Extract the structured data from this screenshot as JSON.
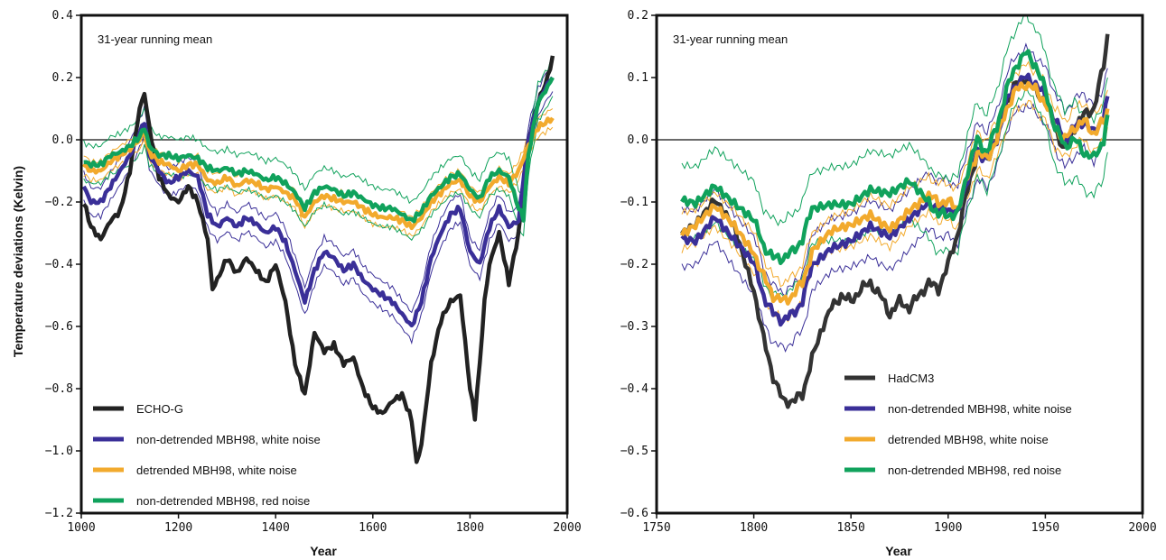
{
  "colors": {
    "echo": "#222222",
    "hadcm3": "#333333",
    "white_noise": "#3a2f98",
    "detrended": "#f2aa2d",
    "red_noise": "#10a25c"
  },
  "shared": {
    "ylabel": "Temperature deviations (Kelvin)",
    "xlabel": "Year",
    "note": "31-year running mean"
  },
  "chart_data": [
    {
      "type": "line",
      "xlabel": "Year",
      "ylabel": "Temperature deviations (Kelvin)",
      "annotation": "31-year running mean",
      "xlim": [
        1000,
        2000
      ],
      "ylim": [
        -1.2,
        0.4
      ],
      "xticks": [
        "1000",
        "1200",
        "1400",
        "1600",
        "1800",
        "2000"
      ],
      "yticks": [
        "0.4",
        "0.2",
        "0.0",
        "−0.2",
        "−0.4",
        "−0.6",
        "−0.8",
        "−1.0",
        "−1.2"
      ],
      "zero_line": true,
      "legend_position": "bottom-left",
      "series": [
        {
          "name": "ECHO-G",
          "color_key": "echo",
          "x": [
            1005,
            1020,
            1040,
            1060,
            1080,
            1100,
            1120,
            1130,
            1140,
            1160,
            1180,
            1200,
            1220,
            1240,
            1260,
            1270,
            1280,
            1300,
            1320,
            1340,
            1360,
            1380,
            1400,
            1420,
            1440,
            1460,
            1480,
            1500,
            1520,
            1540,
            1560,
            1580,
            1600,
            1620,
            1640,
            1660,
            1680,
            1690,
            1700,
            1720,
            1740,
            1760,
            1780,
            1800,
            1810,
            1820,
            1830,
            1840,
            1860,
            1880,
            1900,
            1920,
            1940,
            1960,
            1970
          ],
          "values": [
            -0.2,
            -0.28,
            -0.32,
            -0.26,
            -0.23,
            -0.1,
            0.1,
            0.15,
            0.04,
            -0.12,
            -0.18,
            -0.2,
            -0.15,
            -0.2,
            -0.32,
            -0.48,
            -0.45,
            -0.38,
            -0.43,
            -0.38,
            -0.42,
            -0.46,
            -0.4,
            -0.52,
            -0.72,
            -0.82,
            -0.62,
            -0.68,
            -0.66,
            -0.72,
            -0.7,
            -0.8,
            -0.86,
            -0.88,
            -0.84,
            -0.82,
            -0.9,
            -1.04,
            -0.98,
            -0.72,
            -0.58,
            -0.52,
            -0.5,
            -0.8,
            -0.89,
            -0.72,
            -0.52,
            -0.4,
            -0.3,
            -0.46,
            -0.3,
            0.0,
            0.12,
            0.2,
            0.27
          ]
        },
        {
          "name": "non-detrended MBH98, white noise",
          "color_key": "white_noise",
          "x": [
            1005,
            1020,
            1040,
            1060,
            1080,
            1100,
            1120,
            1130,
            1140,
            1160,
            1180,
            1200,
            1220,
            1240,
            1260,
            1280,
            1300,
            1320,
            1340,
            1360,
            1380,
            1400,
            1420,
            1440,
            1460,
            1480,
            1500,
            1520,
            1540,
            1560,
            1580,
            1600,
            1620,
            1640,
            1660,
            1680,
            1700,
            1720,
            1740,
            1760,
            1780,
            1800,
            1820,
            1840,
            1860,
            1880,
            1900,
            1920,
            1940,
            1960,
            1970
          ],
          "values": [
            -0.15,
            -0.2,
            -0.2,
            -0.15,
            -0.1,
            -0.05,
            0.02,
            0.06,
            -0.05,
            -0.1,
            -0.14,
            -0.12,
            -0.1,
            -0.12,
            -0.24,
            -0.28,
            -0.25,
            -0.28,
            -0.25,
            -0.27,
            -0.3,
            -0.28,
            -0.33,
            -0.42,
            -0.52,
            -0.42,
            -0.36,
            -0.38,
            -0.42,
            -0.4,
            -0.45,
            -0.48,
            -0.5,
            -0.52,
            -0.56,
            -0.6,
            -0.52,
            -0.38,
            -0.3,
            -0.24,
            -0.22,
            -0.36,
            -0.4,
            -0.28,
            -0.22,
            -0.28,
            -0.26,
            0.0,
            0.12,
            0.18,
            0.2
          ]
        },
        {
          "name": "detrended MBH98, white noise",
          "color_key": "detrended",
          "x": [
            1005,
            1020,
            1040,
            1060,
            1080,
            1100,
            1120,
            1130,
            1140,
            1160,
            1180,
            1200,
            1220,
            1240,
            1260,
            1280,
            1300,
            1320,
            1340,
            1360,
            1380,
            1400,
            1420,
            1440,
            1460,
            1480,
            1500,
            1520,
            1540,
            1560,
            1580,
            1600,
            1620,
            1640,
            1660,
            1680,
            1700,
            1720,
            1740,
            1760,
            1780,
            1800,
            1820,
            1840,
            1860,
            1880,
            1900,
            1920,
            1940,
            1960,
            1970
          ],
          "values": [
            -0.08,
            -0.1,
            -0.1,
            -0.07,
            -0.05,
            -0.03,
            0.0,
            0.03,
            -0.04,
            -0.07,
            -0.08,
            -0.1,
            -0.08,
            -0.08,
            -0.13,
            -0.14,
            -0.12,
            -0.15,
            -0.13,
            -0.14,
            -0.16,
            -0.15,
            -0.17,
            -0.19,
            -0.25,
            -0.2,
            -0.18,
            -0.19,
            -0.2,
            -0.2,
            -0.22,
            -0.24,
            -0.25,
            -0.25,
            -0.26,
            -0.28,
            -0.25,
            -0.2,
            -0.17,
            -0.14,
            -0.13,
            -0.18,
            -0.2,
            -0.15,
            -0.12,
            -0.14,
            -0.1,
            -0.02,
            0.04,
            0.06,
            0.07
          ]
        },
        {
          "name": "non-detrended MBH98, red noise",
          "color_key": "red_noise",
          "x": [
            1005,
            1020,
            1040,
            1060,
            1080,
            1100,
            1120,
            1130,
            1140,
            1160,
            1180,
            1200,
            1220,
            1240,
            1260,
            1280,
            1300,
            1320,
            1340,
            1360,
            1380,
            1400,
            1420,
            1440,
            1460,
            1480,
            1500,
            1520,
            1540,
            1560,
            1580,
            1600,
            1620,
            1640,
            1660,
            1680,
            1700,
            1720,
            1740,
            1760,
            1780,
            1800,
            1820,
            1840,
            1860,
            1880,
            1900,
            1910,
            1920,
            1940,
            1960,
            1970
          ],
          "values": [
            -0.07,
            -0.08,
            -0.08,
            -0.05,
            -0.04,
            -0.02,
            0.01,
            0.04,
            -0.02,
            -0.05,
            -0.05,
            -0.06,
            -0.05,
            -0.06,
            -0.09,
            -0.1,
            -0.09,
            -0.11,
            -0.1,
            -0.11,
            -0.13,
            -0.12,
            -0.14,
            -0.17,
            -0.22,
            -0.17,
            -0.15,
            -0.16,
            -0.18,
            -0.17,
            -0.19,
            -0.21,
            -0.22,
            -0.22,
            -0.24,
            -0.26,
            -0.23,
            -0.18,
            -0.15,
            -0.12,
            -0.11,
            -0.16,
            -0.19,
            -0.12,
            -0.1,
            -0.12,
            -0.22,
            -0.25,
            -0.05,
            0.12,
            0.17,
            0.2
          ]
        }
      ]
    },
    {
      "type": "line",
      "xlabel": "Year",
      "ylabel": "",
      "annotation": "31-year running mean",
      "xlim": [
        1750,
        2000
      ],
      "ylim": [
        -0.6,
        0.2
      ],
      "xticks": [
        "1750",
        "1800",
        "1850",
        "1900",
        "1950",
        "2000"
      ],
      "yticks": [
        "0.2",
        "0.1",
        "0.0",
        "−0.1",
        "−0.2",
        "−0.3",
        "−0.4",
        "−0.5",
        "−0.6"
      ],
      "zero_line": true,
      "legend_position": "bottom-right",
      "series": [
        {
          "name": "HadCM3",
          "color_key": "hadcm3",
          "x": [
            1763,
            1770,
            1780,
            1790,
            1800,
            1805,
            1810,
            1815,
            1820,
            1825,
            1830,
            1840,
            1845,
            1850,
            1855,
            1860,
            1865,
            1870,
            1875,
            1880,
            1885,
            1890,
            1895,
            1900,
            1905,
            1910,
            1915,
            1920,
            1925,
            1930,
            1935,
            1940,
            1945,
            1950,
            1955,
            1960,
            1965,
            1970,
            1975,
            1980,
            1982
          ],
          "values": [
            -0.15,
            -0.14,
            -0.1,
            -0.14,
            -0.24,
            -0.32,
            -0.38,
            -0.42,
            -0.42,
            -0.41,
            -0.35,
            -0.27,
            -0.25,
            -0.26,
            -0.24,
            -0.23,
            -0.25,
            -0.28,
            -0.26,
            -0.27,
            -0.25,
            -0.23,
            -0.24,
            -0.2,
            -0.15,
            -0.08,
            -0.02,
            -0.03,
            0.0,
            0.06,
            0.09,
            0.1,
            0.08,
            0.06,
            0.02,
            -0.02,
            0.02,
            0.04,
            0.05,
            0.12,
            0.17
          ]
        },
        {
          "name": "non-detrended MBH98, white noise",
          "color_key": "white_noise",
          "x": [
            1763,
            1770,
            1780,
            1790,
            1800,
            1805,
            1810,
            1815,
            1820,
            1825,
            1830,
            1840,
            1850,
            1860,
            1870,
            1880,
            1890,
            1895,
            1900,
            1905,
            1910,
            1915,
            1920,
            1925,
            1930,
            1935,
            1940,
            1945,
            1950,
            1955,
            1960,
            1965,
            1970,
            1975,
            1980,
            1982
          ],
          "values": [
            -0.16,
            -0.16,
            -0.12,
            -0.16,
            -0.2,
            -0.25,
            -0.28,
            -0.29,
            -0.28,
            -0.26,
            -0.2,
            -0.17,
            -0.16,
            -0.14,
            -0.16,
            -0.13,
            -0.1,
            -0.11,
            -0.11,
            -0.12,
            -0.06,
            -0.02,
            -0.03,
            0.0,
            0.06,
            0.09,
            0.1,
            0.09,
            0.07,
            0.03,
            0.0,
            0.02,
            0.03,
            0.01,
            0.04,
            0.07
          ]
        },
        {
          "name": "detrended MBH98, white noise",
          "color_key": "detrended",
          "x": [
            1763,
            1770,
            1780,
            1790,
            1800,
            1805,
            1810,
            1815,
            1820,
            1825,
            1830,
            1840,
            1850,
            1860,
            1870,
            1880,
            1890,
            1895,
            1900,
            1905,
            1910,
            1915,
            1920,
            1925,
            1930,
            1935,
            1940,
            1945,
            1950,
            1955,
            1960,
            1965,
            1970,
            1975,
            1980,
            1982
          ],
          "values": [
            -0.15,
            -0.14,
            -0.11,
            -0.14,
            -0.18,
            -0.22,
            -0.25,
            -0.26,
            -0.25,
            -0.23,
            -0.18,
            -0.15,
            -0.14,
            -0.12,
            -0.14,
            -0.11,
            -0.09,
            -0.1,
            -0.1,
            -0.11,
            -0.06,
            -0.02,
            -0.03,
            0.0,
            0.05,
            0.08,
            0.09,
            0.08,
            0.06,
            0.02,
            0.0,
            0.02,
            0.03,
            0.01,
            0.03,
            0.05
          ]
        },
        {
          "name": "non-detrended MBH98, red noise",
          "color_key": "red_noise",
          "x": [
            1763,
            1770,
            1780,
            1790,
            1800,
            1805,
            1810,
            1815,
            1820,
            1825,
            1830,
            1840,
            1850,
            1860,
            1870,
            1880,
            1890,
            1895,
            1900,
            1905,
            1910,
            1915,
            1920,
            1925,
            1930,
            1935,
            1940,
            1945,
            1950,
            1955,
            1960,
            1965,
            1970,
            1975,
            1980,
            1982
          ],
          "values": [
            -0.1,
            -0.1,
            -0.07,
            -0.1,
            -0.13,
            -0.17,
            -0.19,
            -0.19,
            -0.18,
            -0.16,
            -0.11,
            -0.1,
            -0.1,
            -0.08,
            -0.09,
            -0.07,
            -0.1,
            -0.12,
            -0.12,
            -0.12,
            -0.05,
            0.0,
            -0.02,
            0.02,
            0.08,
            0.12,
            0.14,
            0.12,
            0.08,
            0.02,
            -0.01,
            0.0,
            -0.02,
            -0.03,
            0.0,
            0.04
          ]
        }
      ]
    }
  ]
}
